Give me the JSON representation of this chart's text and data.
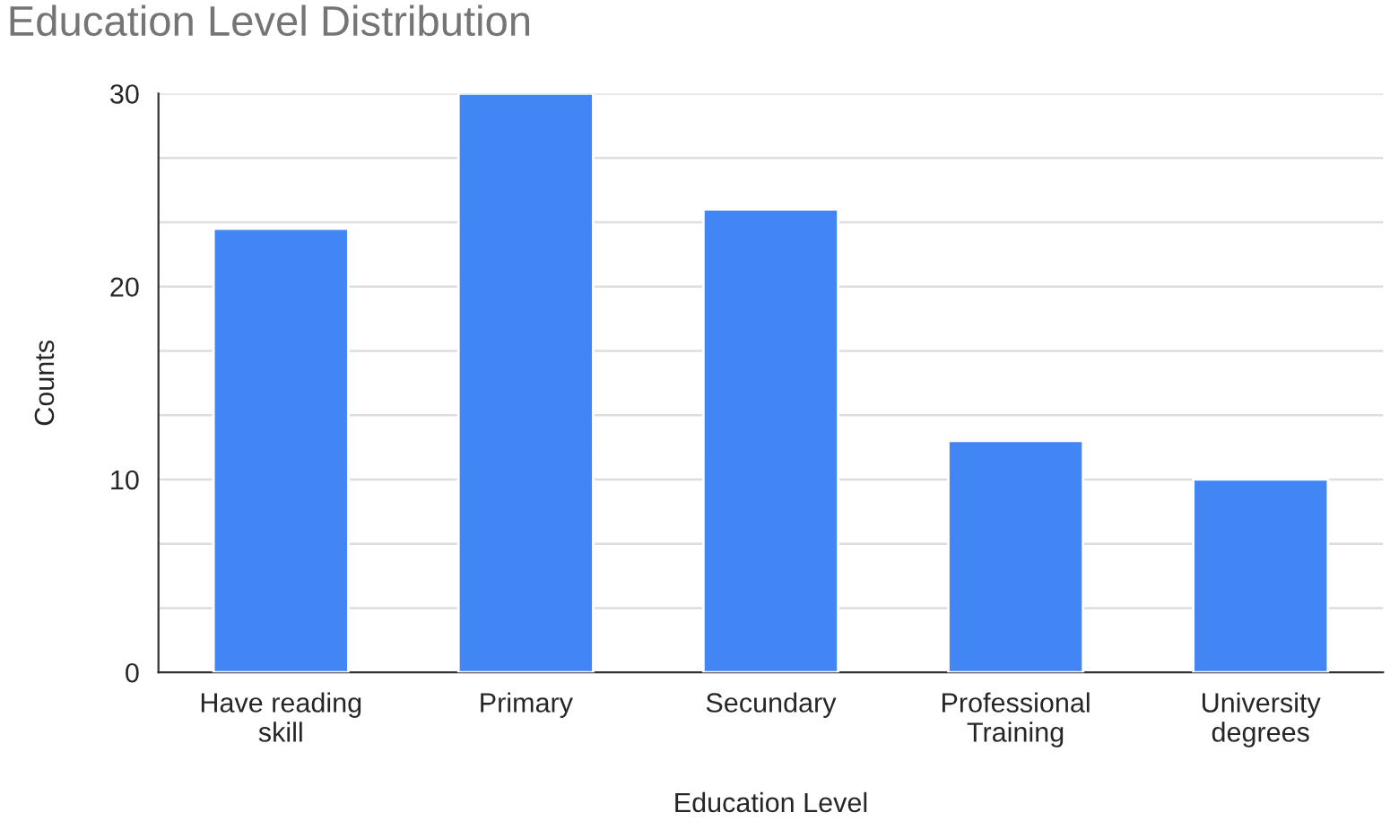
{
  "chart_data": {
    "type": "bar",
    "title": "Education Level Distribution",
    "xlabel": "Education Level",
    "ylabel": "Counts",
    "categories": [
      "Have reading\nskill",
      "Primary",
      "Secundary",
      "Professional\nTraining",
      "University\ndegrees"
    ],
    "values": [
      23,
      30,
      24,
      12,
      10
    ],
    "color": "#4285f4",
    "ylim": [
      0,
      30
    ],
    "yticks": [
      0,
      {
        "value": 3.333,
        "label": null
      },
      {
        "value": 6.667,
        "label": null
      },
      10,
      {
        "value": 13.333,
        "label": null
      },
      {
        "value": 16.667,
        "label": null
      },
      20,
      {
        "value": 23.333,
        "label": null
      },
      {
        "value": 26.667,
        "label": null
      },
      30
    ],
    "grid": "y",
    "legend": false
  }
}
